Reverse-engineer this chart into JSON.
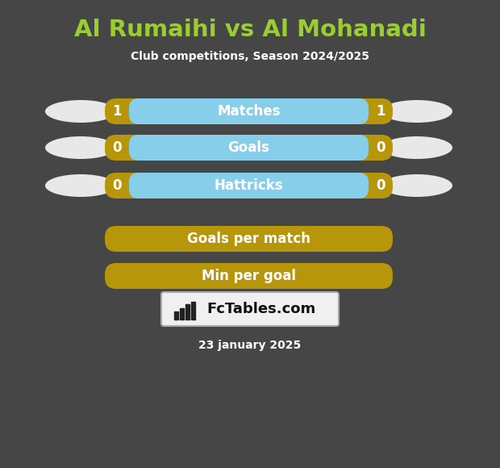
{
  "title": "Al Rumaihi vs Al Mohanadi",
  "subtitle": "Club competitions, Season 2024/2025",
  "date": "23 january 2025",
  "background_color": "#464646",
  "title_color": "#9acd32",
  "subtitle_color": "#ffffff",
  "date_color": "#ffffff",
  "rows": [
    {
      "label": "Matches",
      "left_val": "1",
      "right_val": "1",
      "bar_color": "#87ceeb",
      "border_color": "#b8960c"
    },
    {
      "label": "Goals",
      "left_val": "0",
      "right_val": "0",
      "bar_color": "#87ceeb",
      "border_color": "#b8960c"
    },
    {
      "label": "Hattricks",
      "left_val": "0",
      "right_val": "0",
      "bar_color": "#87ceeb",
      "border_color": "#b8960c"
    },
    {
      "label": "Goals per match",
      "left_val": "",
      "right_val": "",
      "bar_color": "#b8960c",
      "border_color": "#b8960c"
    },
    {
      "label": "Min per goal",
      "left_val": "",
      "right_val": "",
      "bar_color": "#b8960c",
      "border_color": "#b8960c"
    }
  ],
  "ellipse_color": "#e8e8e8",
  "bar_text_color": "#ffffff",
  "val_text_color": "#ffffff",
  "logo_bg": "#f0f0f0",
  "logo_border": "#aaaaaa",
  "logo_text": "FcTables.com",
  "logo_icon_color": "#222222"
}
